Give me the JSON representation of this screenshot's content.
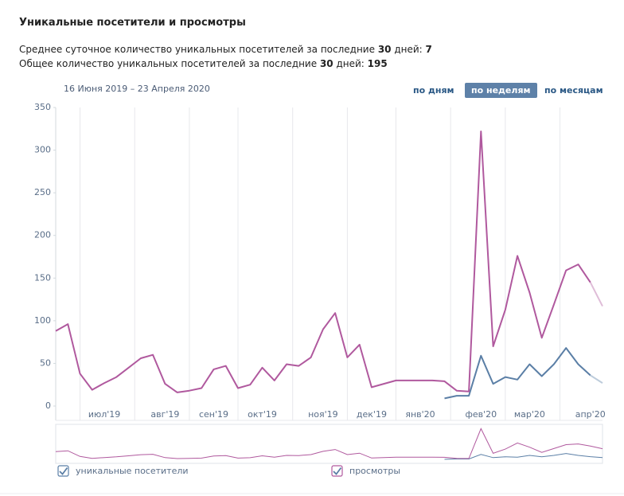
{
  "header": {
    "title": "Уникальные посетители и просмотры",
    "stats": [
      [
        "Среднее суточное количество уникальных посетителей за последние ",
        30,
        " дней: ",
        7
      ],
      [
        "Общее количество уникальных посетителей за последние ",
        30,
        " дней: ",
        195
      ]
    ]
  },
  "period": "16 Июня 2019 – 23 Апреля 2020",
  "buttons": [
    {
      "label": "по дням",
      "selected": false
    },
    {
      "label": "по неделям",
      "selected": true
    },
    {
      "label": "по месяцам",
      "selected": false
    }
  ],
  "chart_data": {
    "type": "line",
    "categories": [
      null,
      null,
      null,
      null,
      "июл'19",
      null,
      null,
      null,
      null,
      "авг'19",
      null,
      null,
      null,
      "сен'19",
      null,
      null,
      null,
      "окт'19",
      null,
      null,
      null,
      null,
      "ноя'19",
      null,
      null,
      null,
      "дек'19",
      null,
      null,
      null,
      "янв'20",
      null,
      null,
      null,
      null,
      "фев'20",
      null,
      null,
      null,
      "мар'20",
      null,
      null,
      null,
      null,
      "апр'20",
      null
    ],
    "series": [
      {
        "name": "уникальные посетители",
        "color": "#5b7fa6",
        "values": [
          null,
          null,
          null,
          null,
          null,
          null,
          null,
          null,
          null,
          null,
          null,
          null,
          null,
          null,
          null,
          null,
          null,
          null,
          null,
          null,
          null,
          null,
          null,
          null,
          null,
          null,
          null,
          null,
          null,
          null,
          null,
          null,
          9,
          12,
          12,
          59,
          26,
          34,
          31,
          49,
          35,
          49,
          68,
          49,
          36,
          27
        ]
      },
      {
        "name": "просмотры",
        "color": "#b0599e",
        "values": [
          88,
          96,
          38,
          19,
          27,
          34,
          45,
          56,
          60,
          26,
          16,
          18,
          21,
          43,
          47,
          21,
          25,
          45,
          30,
          49,
          47,
          57,
          90,
          109,
          57,
          72,
          22,
          26,
          30,
          30,
          30,
          30,
          29,
          18,
          17,
          322,
          70,
          113,
          176,
          133,
          80,
          119,
          159,
          166,
          145,
          117
        ]
      }
    ],
    "ylim": [
      0,
      350
    ],
    "yticks": [
      0,
      50,
      100,
      150,
      200,
      250,
      300,
      350
    ],
    "grid": true
  }
}
